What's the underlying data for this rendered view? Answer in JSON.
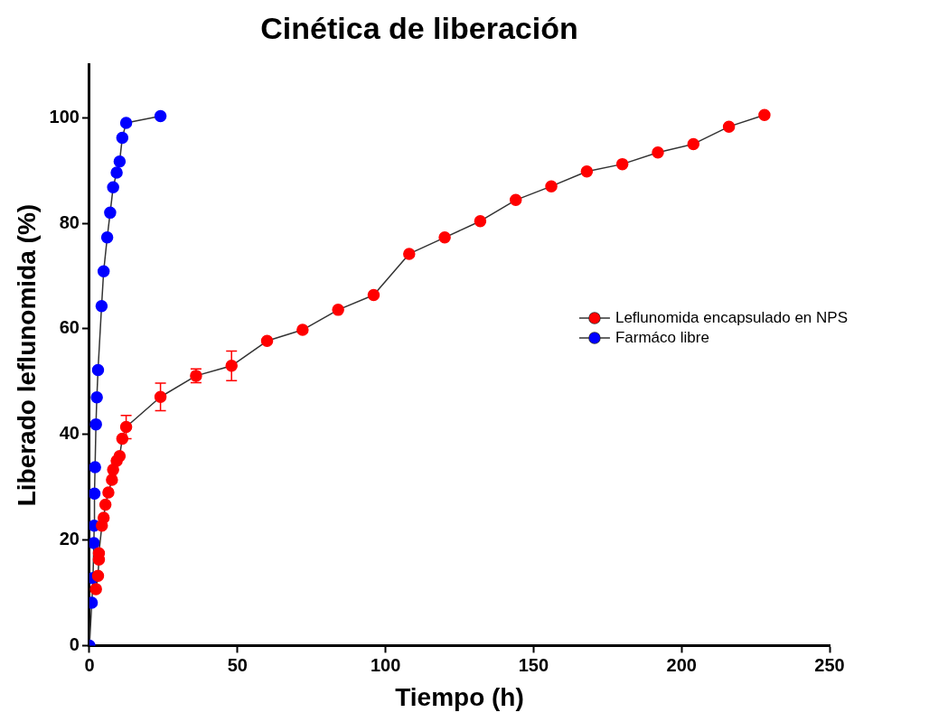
{
  "chart_data": {
    "type": "line",
    "title": "Cinética de liberación",
    "xlabel": "Tiempo (h)",
    "ylabel": "Liberado leflunomida (%)",
    "xlim": [
      0,
      250
    ],
    "xticks": [
      0,
      50,
      100,
      150,
      200,
      250
    ],
    "ylim": [
      0,
      110
    ],
    "yticks": [
      0,
      20,
      40,
      60,
      80,
      100
    ],
    "grid": false,
    "legend": "right",
    "marker": "circle",
    "line_style": "solid",
    "series": [
      {
        "name": "Leflunomida encapsulado en NPS",
        "color": "#ff0000",
        "x": [
          2.2,
          2.9,
          3.2,
          3.2,
          4.2,
          4.8,
          5.4,
          6.4,
          7.6,
          8.0,
          9.2,
          10.2,
          11.1,
          12.4,
          24,
          36,
          48,
          60,
          72,
          84,
          96,
          108,
          120,
          132,
          144,
          156,
          168,
          180,
          192,
          204,
          216,
          228
        ],
        "values": [
          10.7,
          13.2,
          16.3,
          17.5,
          22.7,
          24.2,
          26.7,
          29.0,
          31.4,
          33.3,
          35.0,
          35.9,
          39.2,
          41.4,
          47.1,
          51.1,
          53,
          57.7,
          59.8,
          63.6,
          66.4,
          74.2,
          77.3,
          80.4,
          84.4,
          87.0,
          89.8,
          91.2,
          93.4,
          95.0,
          98.3,
          100.5
        ],
        "errors": [
          null,
          null,
          null,
          null,
          null,
          null,
          null,
          null,
          null,
          null,
          null,
          null,
          null,
          2.2,
          2.6,
          1.3,
          2.8,
          null,
          null,
          null,
          null,
          null,
          null,
          null,
          null,
          null,
          null,
          null,
          null,
          null,
          null,
          null
        ]
      },
      {
        "name": "Farmáco libre",
        "color": "#0000ff",
        "x": [
          0,
          0.8,
          1.2,
          1.5,
          1.6,
          1.7,
          1.9,
          2.2,
          2.5,
          2.9,
          4.1,
          4.8,
          6.0,
          7.0,
          8.0,
          9.2,
          10.2,
          11.1,
          12.4,
          24
        ],
        "values": [
          0,
          8.1,
          12.8,
          19.4,
          22.7,
          28.8,
          33.8,
          41.9,
          47.0,
          52.2,
          64.3,
          70.9,
          77.3,
          82.0,
          86.8,
          89.6,
          91.7,
          96.2,
          99.0,
          100.3
        ]
      }
    ]
  }
}
